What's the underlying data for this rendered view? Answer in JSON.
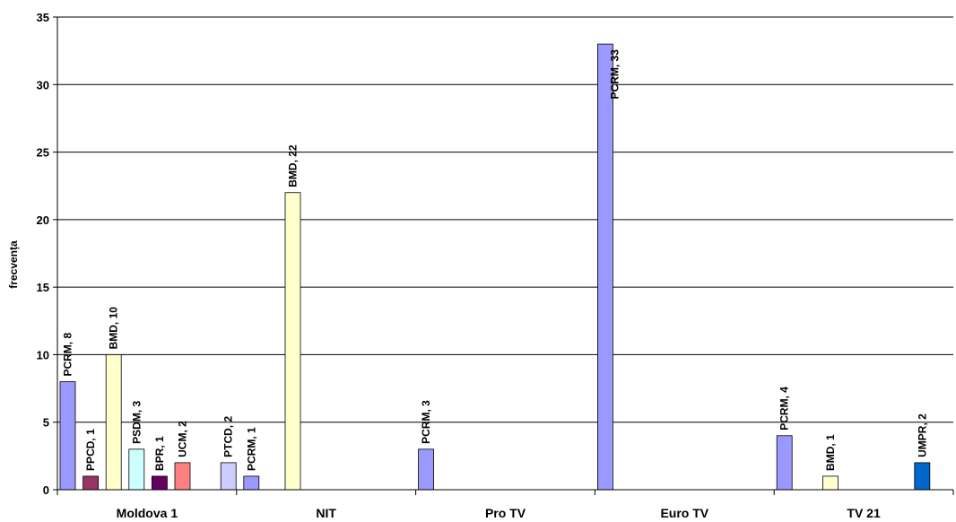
{
  "chart_data": {
    "type": "bar",
    "ylabel": "frecvența",
    "xlabel": "",
    "ylim": [
      0,
      35
    ],
    "yticks": [
      0,
      5,
      10,
      15,
      20,
      25,
      30,
      35
    ],
    "grid": true,
    "legend": "none",
    "categories": [
      "Moldova 1",
      "NIT",
      "Pro TV",
      "Euro TV",
      "TV 21"
    ],
    "bars": [
      {
        "category": "Moldova 1",
        "slot": 0,
        "label": "PCRM, 8",
        "value": 8,
        "color": "#9999FF"
      },
      {
        "category": "Moldova 1",
        "slot": 1,
        "label": "PPCD, 1",
        "value": 1,
        "color": "#993366"
      },
      {
        "category": "Moldova 1",
        "slot": 2,
        "label": "BMD, 10",
        "value": 10,
        "color": "#FFFFCC"
      },
      {
        "category": "Moldova 1",
        "slot": 3,
        "label": "PSDM, 3",
        "value": 3,
        "color": "#CCFFFF"
      },
      {
        "category": "Moldova 1",
        "slot": 4,
        "label": "BPR, 1",
        "value": 1,
        "color": "#660066"
      },
      {
        "category": "Moldova 1",
        "slot": 5,
        "label": "UCM, 2",
        "value": 2,
        "color": "#FF8080"
      },
      {
        "category": "Moldova 1",
        "slot": 7,
        "label": "PTCD, 2",
        "value": 2,
        "color": "#CCCCFF"
      },
      {
        "category": "Moldova 1",
        "slot": 8,
        "label": "PCRM, 1",
        "value": 1,
        "color": "#9999FF"
      },
      {
        "category": "NIT",
        "slot": 2,
        "label": "BMD, 22",
        "value": 22,
        "color": "#FFFFCC"
      },
      {
        "category": "Pro TV",
        "slot": 0,
        "label": "PCRM, 3",
        "value": 3,
        "color": "#9999FF"
      },
      {
        "category": "Euro TV",
        "slot": 0,
        "label": "PCRM, 33",
        "value": 33,
        "color": "#9999FF"
      },
      {
        "category": "TV 21",
        "slot": 0,
        "label": "PCRM, 4",
        "value": 4,
        "color": "#9999FF"
      },
      {
        "category": "TV 21",
        "slot": 2,
        "label": "BMD, 1",
        "value": 1,
        "color": "#FFFFCC"
      },
      {
        "category": "TV 21",
        "slot": 6,
        "label": "UMPR, 2",
        "value": 2,
        "color": "#0066CC"
      }
    ]
  }
}
